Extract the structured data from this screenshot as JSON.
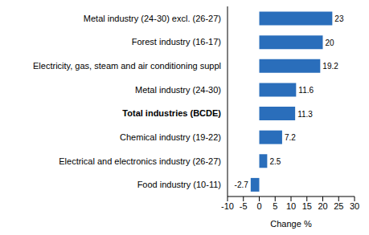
{
  "chart_data": {
    "type": "bar",
    "orientation": "horizontal",
    "categories": [
      "Metal industry (24-30) excl. (26-27)",
      "Forest industry (16-17)",
      "Electricity, gas, steam and air conditioning suppl",
      "Metal industry (24-30)",
      "Total industries (BCDE)",
      "Chemical industry (19-22)",
      "Electrical and electronics industry (26-27)",
      "Food industry (10-11)"
    ],
    "values": [
      23,
      20,
      19.2,
      11.6,
      11.3,
      7.2,
      2.5,
      -2.7
    ],
    "color": "#2a6ebb",
    "xlabel": "Change %",
    "xlim": [
      -10,
      30
    ],
    "xticks": [
      -10,
      -5,
      0,
      5,
      10,
      15,
      20,
      25,
      30
    ],
    "grid": false,
    "data_labels": true
  }
}
